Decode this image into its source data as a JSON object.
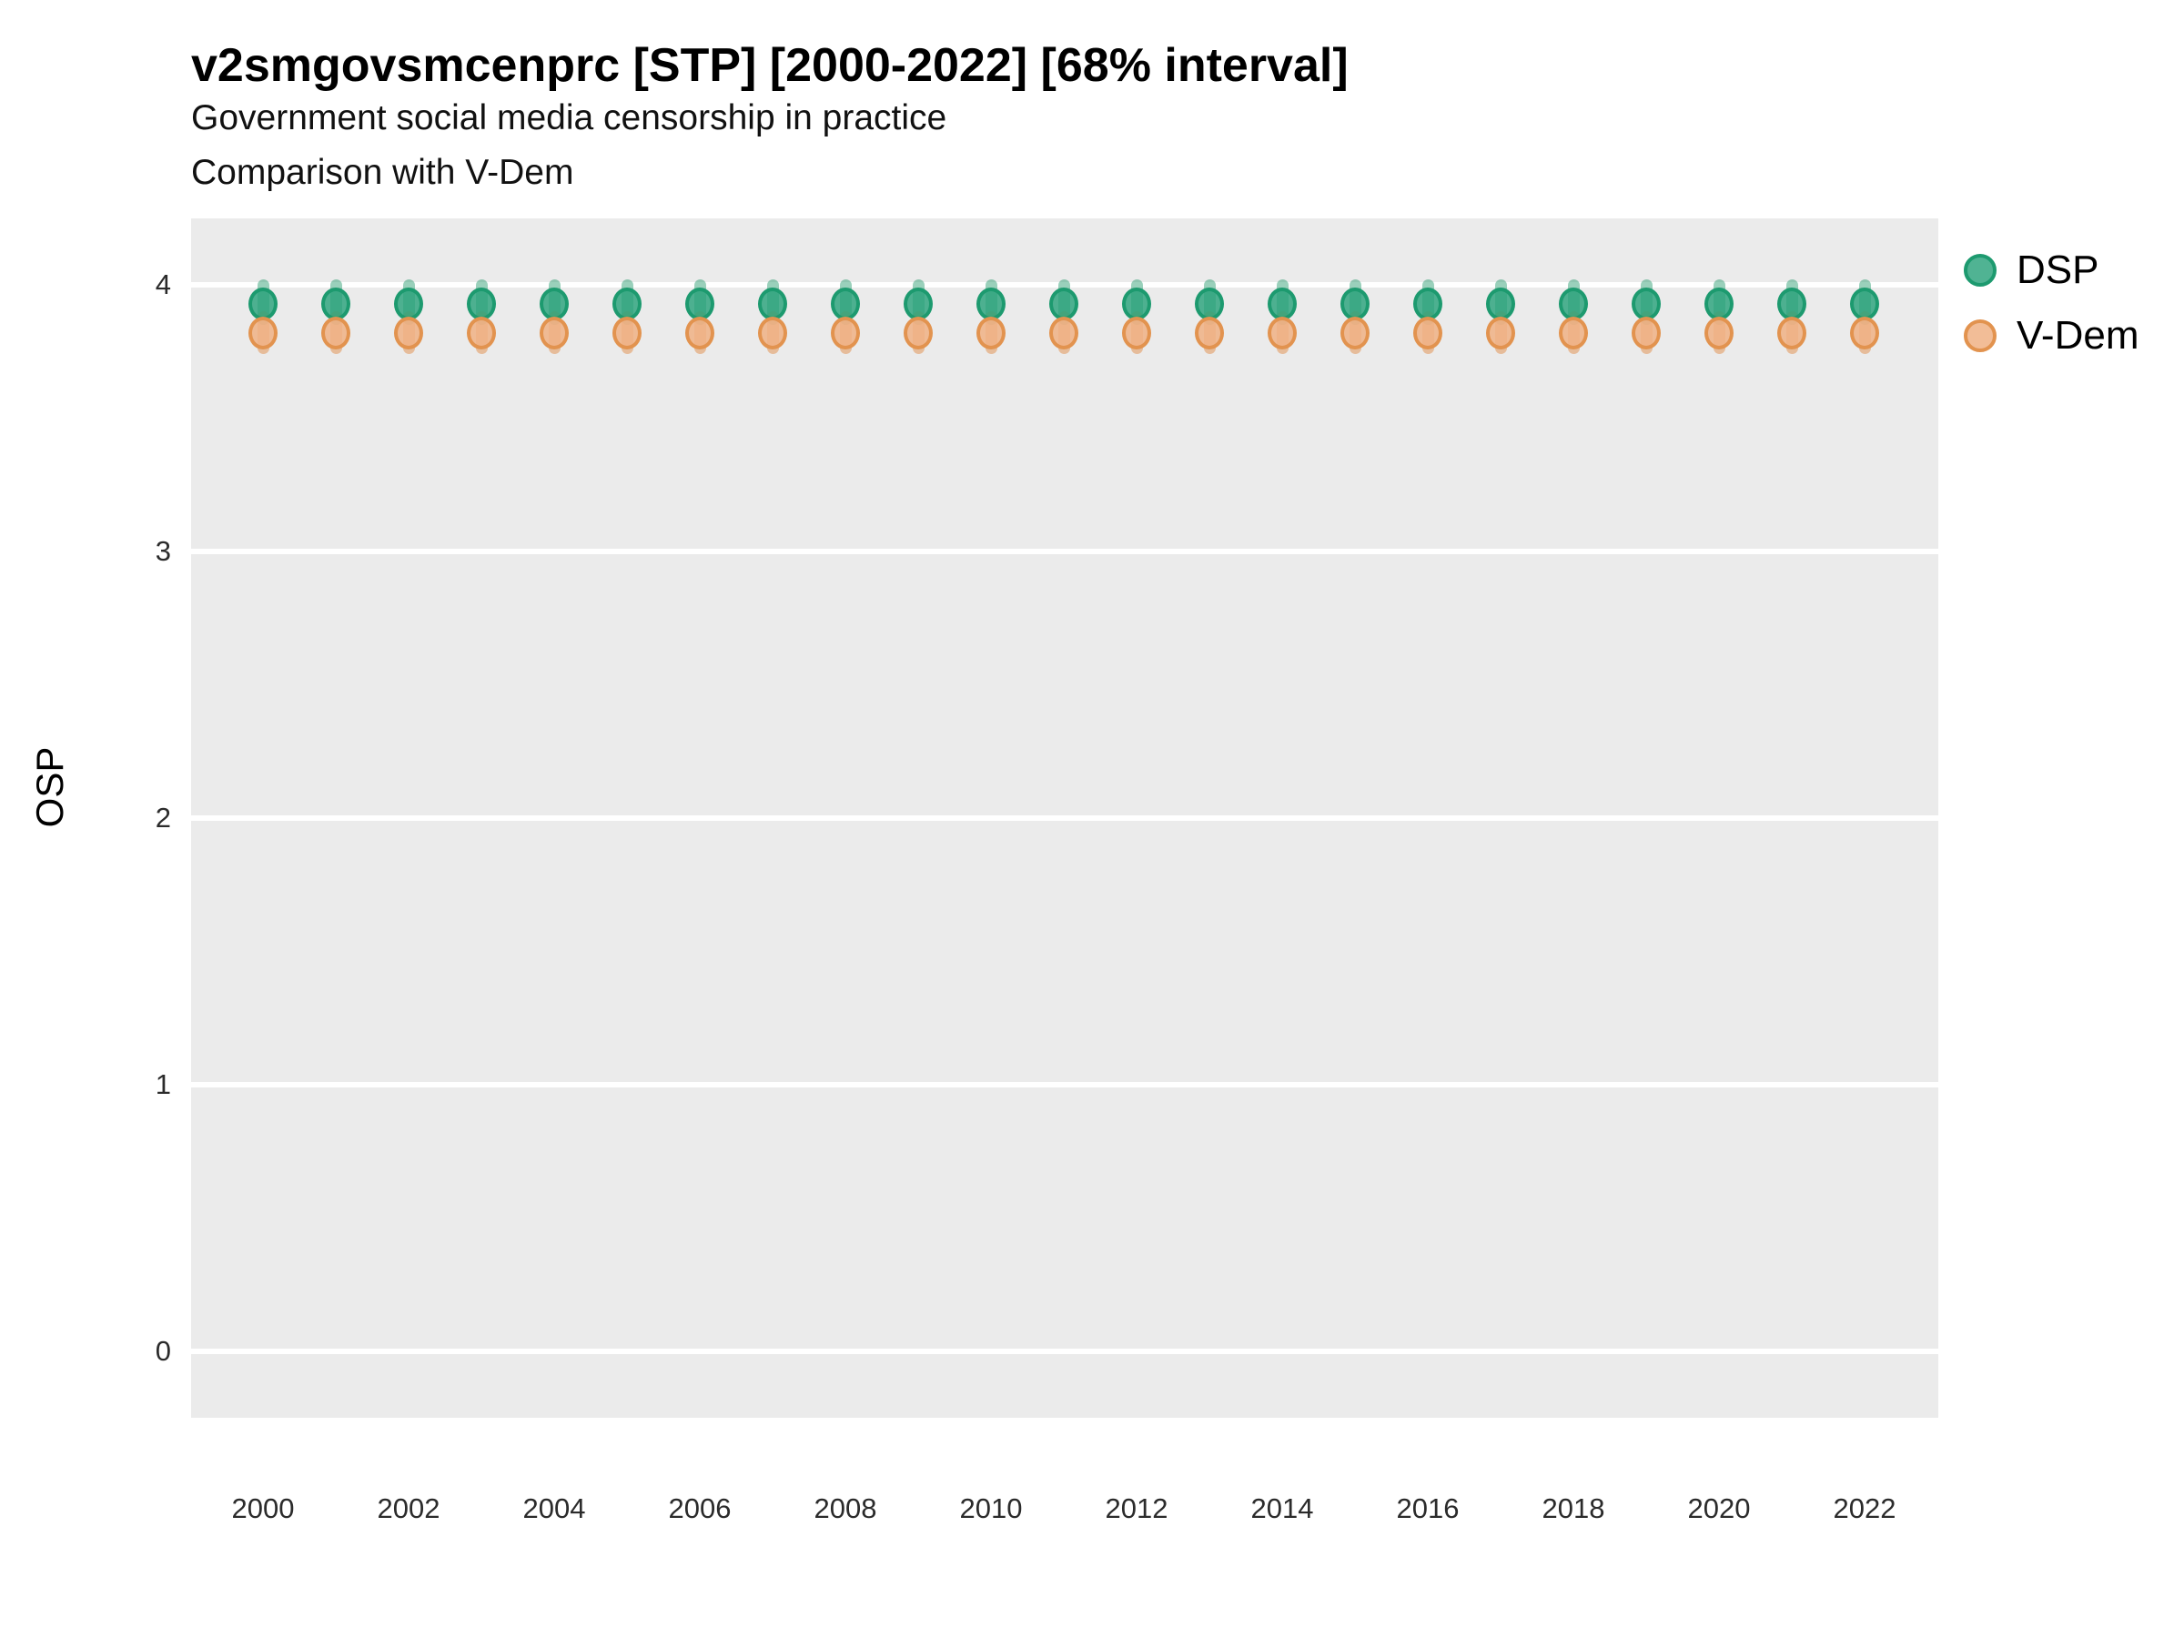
{
  "header": {
    "title": "v2smgovsmcenprc [STP] [2000-2022] [68% interval]",
    "subtitle": "Government social media censorship in practice",
    "subtitle2": "Comparison with V-Dem"
  },
  "panel": {
    "background": "#EBEBEB",
    "gridline_color": "#FFFFFF"
  },
  "chart_data": {
    "type": "scatter",
    "title": "v2smgovsmcenprc [STP] [2000-2022] [68% interval]",
    "subtitle": "Government social media censorship in practice",
    "comparison_note": "Comparison with V-Dem",
    "interval_label": "68% interval",
    "xlabel": "",
    "ylabel": "OSP",
    "x": [
      2000,
      2001,
      2002,
      2003,
      2004,
      2005,
      2006,
      2007,
      2008,
      2009,
      2010,
      2011,
      2012,
      2013,
      2014,
      2015,
      2016,
      2017,
      2018,
      2019,
      2020,
      2021,
      2022
    ],
    "x_tick_labels": [
      "2000",
      "2002",
      "2004",
      "2006",
      "2008",
      "2010",
      "2012",
      "2014",
      "2016",
      "2018",
      "2020",
      "2022"
    ],
    "y_tick_labels": [
      "0",
      "1",
      "2",
      "3",
      "4"
    ],
    "y_tick_values": [
      0,
      1,
      2,
      3,
      4
    ],
    "ylim": [
      -0.25,
      4.25
    ],
    "grid": "major-horizontal-only",
    "legend_position": "right",
    "series": [
      {
        "name": "DSP",
        "color": "rgba(41,162,123,0.82)",
        "stroke": "#1D9A6F",
        "bar_color": "rgba(30,150,105,0.45)",
        "values": [
          3.93,
          3.93,
          3.93,
          3.93,
          3.93,
          3.93,
          3.93,
          3.93,
          3.93,
          3.93,
          3.93,
          3.93,
          3.93,
          3.93,
          3.93,
          3.93,
          3.93,
          3.93,
          3.93,
          3.93,
          3.93,
          3.93,
          3.93
        ],
        "low": [
          3.85,
          3.85,
          3.85,
          3.85,
          3.85,
          3.85,
          3.85,
          3.85,
          3.85,
          3.85,
          3.85,
          3.85,
          3.85,
          3.85,
          3.85,
          3.85,
          3.85,
          3.85,
          3.85,
          3.85,
          3.85,
          3.85,
          3.85
        ],
        "high": [
          4.02,
          4.02,
          4.02,
          4.02,
          4.02,
          4.02,
          4.02,
          4.02,
          4.02,
          4.02,
          4.02,
          4.02,
          4.02,
          4.02,
          4.02,
          4.02,
          4.02,
          4.02,
          4.02,
          4.02,
          4.02,
          4.02,
          4.02
        ]
      },
      {
        "name": "V-Dem",
        "color": "rgba(240,178,133,0.85)",
        "stroke": "#E2934F",
        "bar_color": "rgba(226,141,74,0.5)",
        "values": [
          3.82,
          3.82,
          3.82,
          3.82,
          3.82,
          3.82,
          3.82,
          3.82,
          3.82,
          3.82,
          3.82,
          3.82,
          3.82,
          3.82,
          3.82,
          3.82,
          3.82,
          3.82,
          3.82,
          3.82,
          3.82,
          3.82,
          3.82
        ],
        "low": [
          3.74,
          3.74,
          3.74,
          3.74,
          3.74,
          3.74,
          3.74,
          3.74,
          3.74,
          3.74,
          3.74,
          3.74,
          3.74,
          3.74,
          3.74,
          3.74,
          3.74,
          3.74,
          3.74,
          3.74,
          3.74,
          3.74,
          3.74
        ],
        "high": [
          3.9,
          3.9,
          3.9,
          3.9,
          3.9,
          3.9,
          3.9,
          3.9,
          3.9,
          3.9,
          3.9,
          3.9,
          3.9,
          3.9,
          3.9,
          3.9,
          3.9,
          3.9,
          3.9,
          3.9,
          3.9,
          3.9,
          3.9
        ]
      }
    ]
  }
}
